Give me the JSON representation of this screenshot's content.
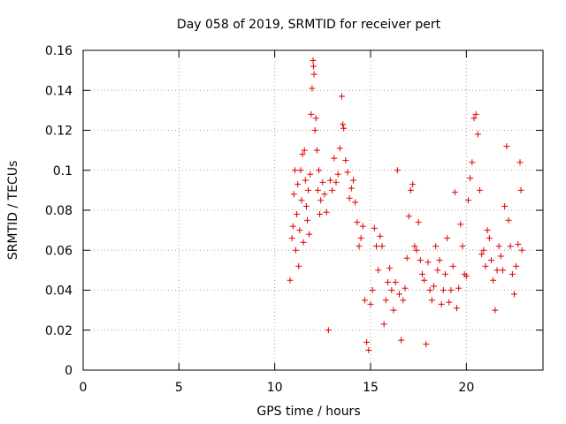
{
  "chart_data": {
    "type": "scatter",
    "title": "Day 058 of 2019, SRMTID for receiver pert",
    "xlabel": "GPS time / hours",
    "ylabel": "SRMTID / TECUs",
    "xlim": [
      0,
      24
    ],
    "ylim": [
      0,
      0.16
    ],
    "xticks": [
      "0",
      "5",
      "10",
      "15",
      "20"
    ],
    "yticks": [
      "0",
      "0.02",
      "0.04",
      "0.06",
      "0.08",
      "0.1",
      "0.12",
      "0.14",
      "0.16"
    ],
    "grid": true,
    "marker": "plus",
    "color": "#dd0000",
    "series": [
      {
        "points": [
          [
            10.8,
            0.045
          ],
          [
            10.9,
            0.066
          ],
          [
            10.95,
            0.072
          ],
          [
            11.0,
            0.088
          ],
          [
            11.05,
            0.1
          ],
          [
            11.1,
            0.06
          ],
          [
            11.15,
            0.078
          ],
          [
            11.2,
            0.093
          ],
          [
            11.25,
            0.052
          ],
          [
            11.3,
            0.07
          ],
          [
            11.35,
            0.1
          ],
          [
            11.4,
            0.085
          ],
          [
            11.45,
            0.108
          ],
          [
            11.5,
            0.064
          ],
          [
            11.55,
            0.11
          ],
          [
            11.6,
            0.095
          ],
          [
            11.65,
            0.082
          ],
          [
            11.7,
            0.075
          ],
          [
            11.75,
            0.09
          ],
          [
            11.8,
            0.068
          ],
          [
            11.85,
            0.098
          ],
          [
            11.9,
            0.128
          ],
          [
            11.95,
            0.141
          ],
          [
            12.0,
            0.155
          ],
          [
            12.02,
            0.152
          ],
          [
            12.05,
            0.148
          ],
          [
            12.1,
            0.12
          ],
          [
            12.15,
            0.126
          ],
          [
            12.2,
            0.11
          ],
          [
            12.25,
            0.09
          ],
          [
            12.3,
            0.1
          ],
          [
            12.35,
            0.078
          ],
          [
            12.4,
            0.085
          ],
          [
            12.5,
            0.094
          ],
          [
            12.6,
            0.088
          ],
          [
            12.7,
            0.079
          ],
          [
            12.8,
            0.02
          ],
          [
            12.9,
            0.095
          ],
          [
            13.0,
            0.09
          ],
          [
            13.1,
            0.106
          ],
          [
            13.2,
            0.094
          ],
          [
            13.3,
            0.098
          ],
          [
            13.4,
            0.111
          ],
          [
            13.5,
            0.137
          ],
          [
            13.55,
            0.123
          ],
          [
            13.6,
            0.121
          ],
          [
            13.7,
            0.105
          ],
          [
            13.8,
            0.099
          ],
          [
            13.9,
            0.086
          ],
          [
            14.0,
            0.091
          ],
          [
            14.1,
            0.095
          ],
          [
            14.2,
            0.084
          ],
          [
            14.3,
            0.074
          ],
          [
            14.4,
            0.062
          ],
          [
            14.5,
            0.066
          ],
          [
            14.6,
            0.072
          ],
          [
            14.7,
            0.035
          ],
          [
            14.8,
            0.014
          ],
          [
            14.9,
            0.01
          ],
          [
            15.0,
            0.033
          ],
          [
            15.1,
            0.04
          ],
          [
            15.2,
            0.071
          ],
          [
            15.3,
            0.062
          ],
          [
            15.4,
            0.05
          ],
          [
            15.5,
            0.067
          ],
          [
            15.6,
            0.062
          ],
          [
            15.7,
            0.023
          ],
          [
            15.8,
            0.035
          ],
          [
            15.9,
            0.044
          ],
          [
            16.0,
            0.051
          ],
          [
            16.1,
            0.04
          ],
          [
            16.2,
            0.03
          ],
          [
            16.3,
            0.044
          ],
          [
            16.4,
            0.1
          ],
          [
            16.5,
            0.038
          ],
          [
            16.6,
            0.015
          ],
          [
            16.7,
            0.035
          ],
          [
            16.8,
            0.041
          ],
          [
            16.9,
            0.056
          ],
          [
            17.0,
            0.077
          ],
          [
            17.1,
            0.09
          ],
          [
            17.2,
            0.093
          ],
          [
            17.3,
            0.062
          ],
          [
            17.4,
            0.06
          ],
          [
            17.5,
            0.074
          ],
          [
            17.6,
            0.055
          ],
          [
            17.7,
            0.048
          ],
          [
            17.8,
            0.045
          ],
          [
            17.9,
            0.013
          ],
          [
            18.0,
            0.054
          ],
          [
            18.1,
            0.04
          ],
          [
            18.2,
            0.035
          ],
          [
            18.3,
            0.042
          ],
          [
            18.4,
            0.062
          ],
          [
            18.5,
            0.05
          ],
          [
            18.6,
            0.055
          ],
          [
            18.7,
            0.033
          ],
          [
            18.8,
            0.04
          ],
          [
            18.9,
            0.048
          ],
          [
            19.0,
            0.066
          ],
          [
            19.1,
            0.034
          ],
          [
            19.2,
            0.04
          ],
          [
            19.3,
            0.052
          ],
          [
            19.4,
            0.089
          ],
          [
            19.5,
            0.031
          ],
          [
            19.6,
            0.041
          ],
          [
            19.7,
            0.073
          ],
          [
            19.8,
            0.062
          ],
          [
            19.9,
            0.048
          ],
          [
            20.0,
            0.047
          ],
          [
            20.1,
            0.085
          ],
          [
            20.2,
            0.096
          ],
          [
            20.3,
            0.104
          ],
          [
            20.4,
            0.126
          ],
          [
            20.5,
            0.128
          ],
          [
            20.6,
            0.118
          ],
          [
            20.7,
            0.09
          ],
          [
            20.8,
            0.058
          ],
          [
            20.9,
            0.06
          ],
          [
            21.0,
            0.052
          ],
          [
            21.1,
            0.07
          ],
          [
            21.2,
            0.066
          ],
          [
            21.3,
            0.055
          ],
          [
            21.4,
            0.045
          ],
          [
            21.5,
            0.03
          ],
          [
            21.6,
            0.05
          ],
          [
            21.7,
            0.062
          ],
          [
            21.8,
            0.057
          ],
          [
            21.9,
            0.05
          ],
          [
            22.0,
            0.082
          ],
          [
            22.1,
            0.112
          ],
          [
            22.2,
            0.075
          ],
          [
            22.3,
            0.062
          ],
          [
            22.4,
            0.048
          ],
          [
            22.5,
            0.038
          ],
          [
            22.6,
            0.052
          ],
          [
            22.7,
            0.063
          ],
          [
            22.8,
            0.104
          ],
          [
            22.85,
            0.09
          ],
          [
            22.9,
            0.06
          ]
        ]
      }
    ]
  }
}
